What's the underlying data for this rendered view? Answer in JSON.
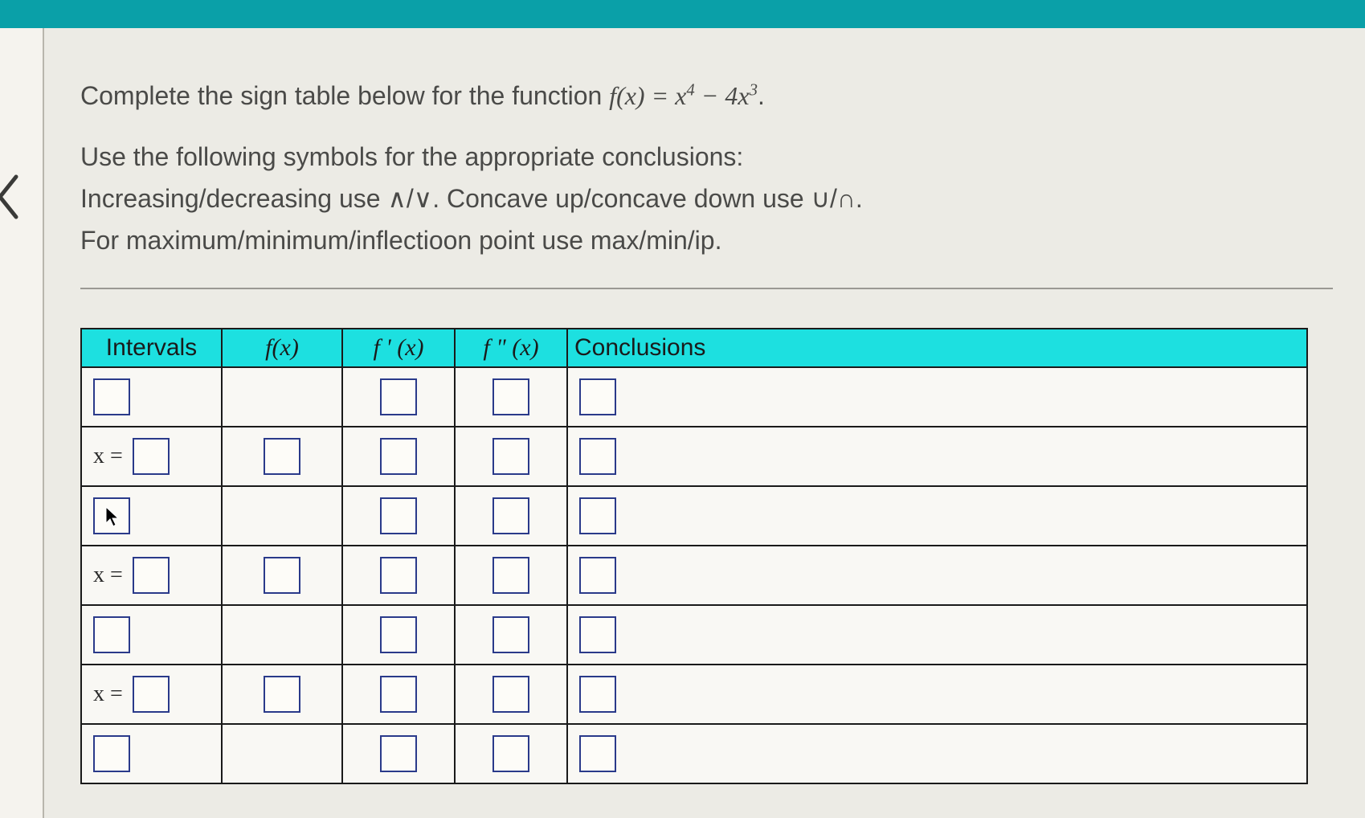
{
  "colors": {
    "top_bar": "#0aa0a8",
    "header_bg": "#1de0e0",
    "body_bg": "#e8e6e1",
    "content_bg": "#ecebe5",
    "table_border": "#1a1a1a",
    "input_border": "#2a3a8a",
    "text": "#4a4a48"
  },
  "prompt": {
    "line1_pre": "Complete the sign table below for the function ",
    "function_expr": "f(x) = x⁴ − 4x³",
    "line1_post": ".",
    "line2": "Use the following symbols for the appropriate conclusions:",
    "line3": "Increasing/decreasing use ∧/∨.  Concave up/concave down use ∪/∩.",
    "line4": "For maximum/minimum/inflectioon point use max/min/ip."
  },
  "table": {
    "headers": {
      "intervals": "Intervals",
      "fx": "f(x)",
      "fpx": "f ' (x)",
      "fppx": "f \" (x)",
      "conclusions": "Conclusions"
    },
    "rows": [
      {
        "type": "interval",
        "intervals_prefix": "",
        "has_fx": false,
        "cursor_in_intervals": false
      },
      {
        "type": "point",
        "intervals_prefix": "x =",
        "has_fx": true,
        "cursor_in_intervals": false
      },
      {
        "type": "interval",
        "intervals_prefix": "",
        "has_fx": false,
        "cursor_in_intervals": true
      },
      {
        "type": "point",
        "intervals_prefix": "x =",
        "has_fx": true,
        "cursor_in_intervals": false
      },
      {
        "type": "interval",
        "intervals_prefix": "",
        "has_fx": false,
        "cursor_in_intervals": false
      },
      {
        "type": "point",
        "intervals_prefix": "x =",
        "has_fx": true,
        "cursor_in_intervals": false
      },
      {
        "type": "interval",
        "intervals_prefix": "",
        "has_fx": false,
        "cursor_in_intervals": false
      }
    ]
  }
}
